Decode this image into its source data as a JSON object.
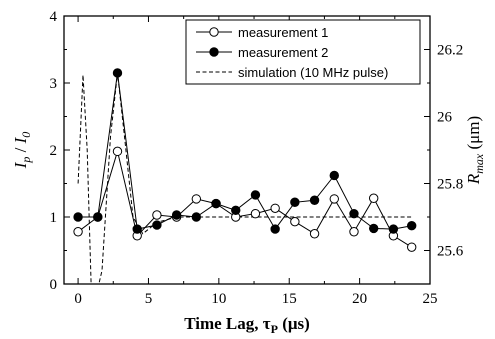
{
  "chart_data": {
    "type": "line",
    "xlabel": "Time Lag, τ",
    "xlabel_sub": "P",
    "xlabel_unit": " (μs)",
    "ylabel_main": "I",
    "ylabel_main_sub1": "p",
    "ylabel_main_sep": " / ",
    "ylabel_main_I": "I",
    "ylabel_main_sub2": "0",
    "ylabel_right": "R",
    "ylabel_right_sub": "max",
    "ylabel_right_unit": " (μm)",
    "xlim": [
      -1,
      25
    ],
    "ylim": [
      0,
      4
    ],
    "ylim_right": [
      25.5,
      26.3
    ],
    "x_ticks": [
      0,
      5,
      10,
      15,
      20,
      25
    ],
    "y_ticks": [
      0,
      1,
      2,
      3,
      4
    ],
    "y_right_ticks": [
      25.6,
      25.8,
      26.0,
      26.2
    ],
    "y_right_tick_labels": [
      "25.6",
      "25.8",
      "26",
      "26.2"
    ],
    "legend_position": "top-right",
    "series": [
      {
        "name": "measurement 1",
        "style": "line-open-circles",
        "x": [
          0,
          1.4,
          2.8,
          4.2,
          5.6,
          7.0,
          8.4,
          9.8,
          11.2,
          12.6,
          14.0,
          15.4,
          16.8,
          18.2,
          19.6,
          21.0,
          22.4,
          23.7
        ],
        "y": [
          0.78,
          1.0,
          1.98,
          0.72,
          1.03,
          1.0,
          1.27,
          1.2,
          1.0,
          1.05,
          1.13,
          0.93,
          0.75,
          1.27,
          0.78,
          1.28,
          0.72,
          0.55
        ]
      },
      {
        "name": "measurement 2",
        "style": "line-filled-circles",
        "x": [
          0,
          1.4,
          2.8,
          4.2,
          5.6,
          7.0,
          8.4,
          9.8,
          11.2,
          12.6,
          14.0,
          15.4,
          16.8,
          18.2,
          19.6,
          21.0,
          22.4,
          23.7
        ],
        "y": [
          1.0,
          1.0,
          3.15,
          0.82,
          0.88,
          1.03,
          1.0,
          1.2,
          1.1,
          1.33,
          0.82,
          1.22,
          1.25,
          1.62,
          1.05,
          0.83,
          0.82,
          0.87
        ]
      },
      {
        "name": "simulation (10 MHz pulse)",
        "style": "dashed",
        "x": [
          0,
          0.35,
          0.65,
          0.95,
          1.25,
          1.7,
          2.3,
          2.8,
          3.3,
          3.9,
          4.6,
          5.6,
          7.0,
          8.4,
          9.8,
          11.2,
          12.6,
          14.0,
          15.4,
          16.8,
          18.2,
          19.6,
          21.0,
          22.4,
          23.7
        ],
        "y": [
          1.5,
          3.12,
          2.0,
          -0.2,
          -0.2,
          0.2,
          2.2,
          3.15,
          2.2,
          1.0,
          0.75,
          0.92,
          1.0,
          1.0,
          1.0,
          1.0,
          1.0,
          1.0,
          1.0,
          1.0,
          1.0,
          1.0,
          1.0,
          1.0,
          1.0
        ]
      }
    ]
  }
}
